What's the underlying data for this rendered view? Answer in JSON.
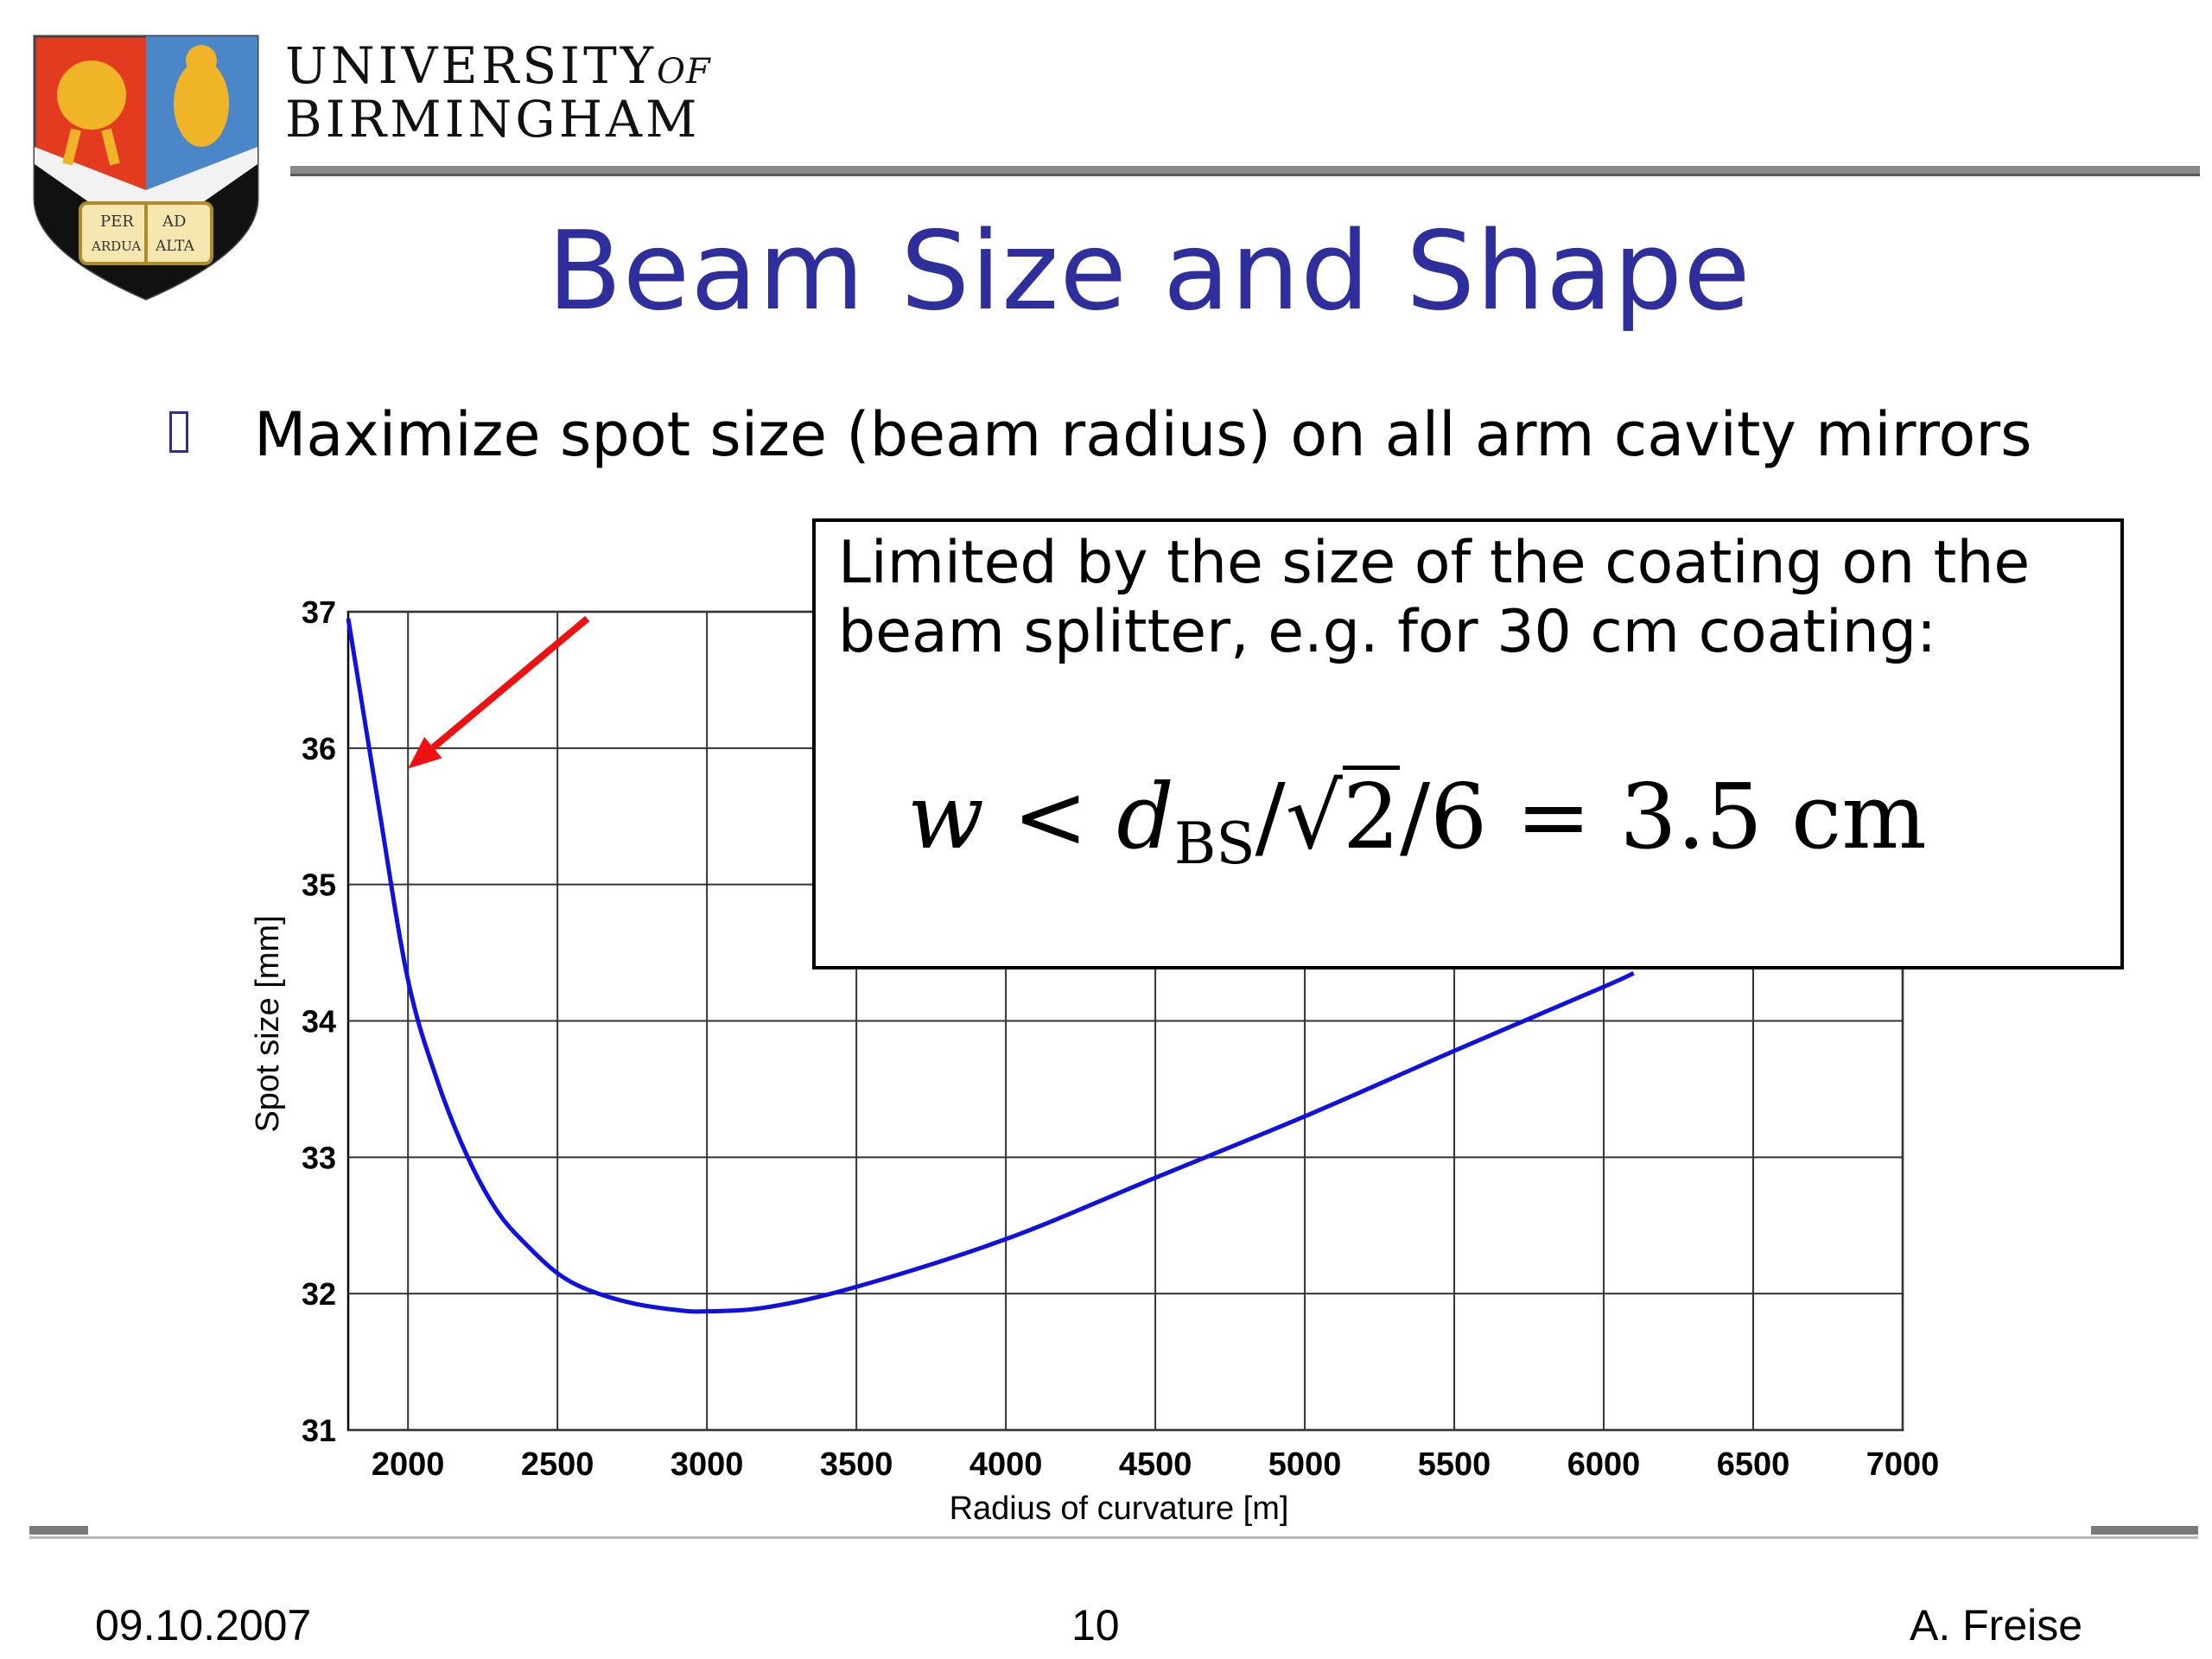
{
  "header": {
    "university_line1": "UNIVERSITY",
    "university_of": "OF",
    "university_line2": "BIRMINGHAM",
    "crest_motto": [
      "PER",
      "AD",
      "ARDUA",
      "ALTA"
    ]
  },
  "slide": {
    "title": "Beam Size and Shape",
    "bullet": "Maximize spot size (beam radius) on all arm cavity mirrors"
  },
  "note": {
    "text": "Limited by the size of the coating on the beam splitter, e.g. for 30 cm coating:",
    "formula": {
      "w": "w",
      "lt": "<",
      "d": "d",
      "sub": "BS",
      "slash1": "/",
      "sqrt": "√",
      "two": "2",
      "rest": "/6 = 3.5 cm"
    }
  },
  "footer": {
    "date": "09.10.2007",
    "page": "10",
    "author": "A. Freise"
  },
  "colors": {
    "title": "#2e2e9c",
    "curve": "#1010e0",
    "arrow": "#ee1111"
  },
  "chart_data": {
    "type": "line",
    "xlabel": "Radius of curvature [m]",
    "ylabel": "Spot size [mm]",
    "xlim": [
      1800,
      7000
    ],
    "ylim": [
      31,
      37
    ],
    "xticks": [
      2000,
      2500,
      3000,
      3500,
      4000,
      4500,
      5000,
      5500,
      6000,
      6500,
      7000
    ],
    "yticks": [
      31,
      32,
      33,
      34,
      35,
      36,
      37
    ],
    "grid": true,
    "series": [
      {
        "x": [
          1800,
          1900,
          2000,
          2100,
          2200,
          2300,
          2400,
          2500,
          2600,
          2750,
          2900,
          3000,
          3200,
          3500,
          4000,
          4500,
          5000,
          5500,
          6000,
          6100
        ],
        "values": [
          36.95,
          35.6,
          34.3,
          33.55,
          33.0,
          32.6,
          32.35,
          32.15,
          32.03,
          31.93,
          31.88,
          31.87,
          31.9,
          32.05,
          32.4,
          32.85,
          33.3,
          33.78,
          34.25,
          34.35
        ]
      }
    ],
    "annotation_arrow": {
      "from": [
        2600,
        36.95
      ],
      "to": [
        2000,
        35.85
      ]
    }
  }
}
